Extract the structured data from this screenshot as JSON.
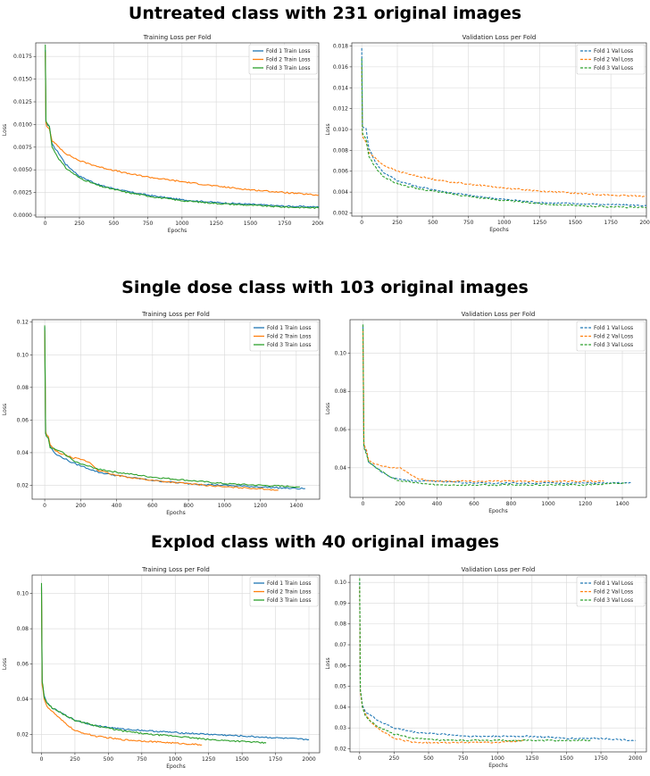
{
  "sections": [
    {
      "title": "Untreated class with 231 original images"
    },
    {
      "title": "Single dose class with 103 original images"
    },
    {
      "title": "Explod class with 40 original images"
    }
  ],
  "colors": {
    "fold1": "#1f77b4",
    "fold2": "#ff7f0e",
    "fold3": "#2ca02c"
  },
  "chart_data": [
    {
      "type": "line",
      "title": "Training Loss per Fold",
      "xlabel": "Epochs",
      "ylabel": "Loss",
      "xlim": [
        -70,
        2000
      ],
      "ylim": [
        -0.0002,
        0.019
      ],
      "xticks": [
        0,
        250,
        500,
        750,
        1000,
        1250,
        1500,
        1750,
        2000
      ],
      "yticks": [
        0.0,
        0.0025,
        0.005,
        0.0075,
        0.01,
        0.0125,
        0.015,
        0.0175
      ],
      "ytick_labels": [
        "0.0000",
        "0.0025",
        "0.0050",
        "0.0075",
        "0.0100",
        "0.0125",
        "0.0150",
        "0.0175"
      ],
      "legend": "top-right",
      "grid": true,
      "line_style": "solid",
      "series": [
        {
          "name": "Fold 1 Train Loss",
          "x": [
            0,
            5,
            10,
            30,
            50,
            100,
            150,
            250,
            400,
            600,
            800,
            1000,
            1250,
            1500,
            1750,
            2000
          ],
          "y": [
            0.0182,
            0.0102,
            0.01,
            0.0098,
            0.0078,
            0.0068,
            0.0056,
            0.0043,
            0.0033,
            0.0026,
            0.0021,
            0.0017,
            0.0014,
            0.0012,
            0.001,
            0.0009
          ]
        },
        {
          "name": "Fold 2 Train Loss",
          "x": [
            0,
            5,
            10,
            30,
            50,
            100,
            150,
            250,
            400,
            600,
            800,
            1000,
            1250,
            1500,
            1750,
            2000
          ],
          "y": [
            0.018,
            0.0102,
            0.0098,
            0.0095,
            0.0082,
            0.0075,
            0.0068,
            0.006,
            0.0053,
            0.0046,
            0.0041,
            0.0037,
            0.0032,
            0.0028,
            0.0025,
            0.0022
          ]
        },
        {
          "name": "Fold 3 Train Loss",
          "x": [
            0,
            5,
            10,
            30,
            50,
            100,
            150,
            250,
            400,
            600,
            800,
            1000,
            1250,
            1500,
            1750,
            2000
          ],
          "y": [
            0.0188,
            0.0104,
            0.0102,
            0.0098,
            0.0075,
            0.0062,
            0.0052,
            0.0041,
            0.0032,
            0.0025,
            0.002,
            0.0016,
            0.0013,
            0.0011,
            0.0009,
            0.0008
          ]
        }
      ]
    },
    {
      "type": "line",
      "title": "Validation Loss per Fold",
      "xlabel": "Epochs",
      "ylabel": "Loss",
      "xlim": [
        -70,
        2000
      ],
      "ylim": [
        0.0017,
        0.0183
      ],
      "xticks": [
        0,
        250,
        500,
        750,
        1000,
        1250,
        1500,
        1750,
        2000
      ],
      "yticks": [
        0.002,
        0.004,
        0.006,
        0.008,
        0.01,
        0.012,
        0.014,
        0.016,
        0.018
      ],
      "ytick_labels": [
        "0.002",
        "0.004",
        "0.006",
        "0.008",
        "0.010",
        "0.012",
        "0.014",
        "0.016",
        "0.018"
      ],
      "legend": "top-right",
      "grid": true,
      "line_style": "dashed",
      "series": [
        {
          "name": "Fold 1 Val Loss",
          "x": [
            0,
            5,
            10,
            30,
            50,
            100,
            150,
            250,
            400,
            600,
            800,
            1000,
            1250,
            1500,
            1750,
            2000
          ],
          "y": [
            0.0178,
            0.0103,
            0.0102,
            0.0101,
            0.0082,
            0.0068,
            0.0059,
            0.0051,
            0.0045,
            0.004,
            0.0036,
            0.0033,
            0.003,
            0.0029,
            0.0028,
            0.0027
          ]
        },
        {
          "name": "Fold 2 Val Loss",
          "x": [
            0,
            5,
            10,
            30,
            50,
            100,
            150,
            250,
            400,
            600,
            800,
            1000,
            1250,
            1500,
            1750,
            2000
          ],
          "y": [
            0.016,
            0.0095,
            0.0092,
            0.0088,
            0.0078,
            0.0072,
            0.0066,
            0.006,
            0.0055,
            0.005,
            0.0047,
            0.0044,
            0.0041,
            0.0039,
            0.0037,
            0.0036
          ]
        },
        {
          "name": "Fold 3 Val Loss",
          "x": [
            0,
            5,
            10,
            30,
            50,
            100,
            150,
            250,
            400,
            600,
            800,
            1000,
            1250,
            1500,
            1750,
            2000
          ],
          "y": [
            0.0168,
            0.0097,
            0.0095,
            0.0091,
            0.0074,
            0.0063,
            0.0055,
            0.0048,
            0.0043,
            0.0039,
            0.0035,
            0.0032,
            0.0029,
            0.0027,
            0.0026,
            0.0025
          ]
        }
      ]
    },
    {
      "type": "line",
      "title": "Training Loss per Fold",
      "xlabel": "Epochs",
      "ylabel": "Loss",
      "xlim": [
        -70,
        1530
      ],
      "ylim": [
        0.0115,
        0.1215
      ],
      "xticks": [
        0,
        200,
        400,
        600,
        800,
        1000,
        1200,
        1400
      ],
      "yticks": [
        0.02,
        0.04,
        0.06,
        0.08,
        0.1,
        0.12
      ],
      "ytick_labels": [
        "0.02",
        "0.04",
        "0.06",
        "0.08",
        "0.10",
        "0.12"
      ],
      "legend": "top-right",
      "grid": true,
      "line_style": "solid",
      "series": [
        {
          "name": "Fold 1 Train Loss",
          "x": [
            0,
            5,
            10,
            20,
            30,
            60,
            100,
            150,
            200,
            300,
            400,
            600,
            800,
            1000,
            1200,
            1400,
            1450
          ],
          "y": [
            0.117,
            0.052,
            0.05,
            0.049,
            0.044,
            0.039,
            0.037,
            0.034,
            0.032,
            0.028,
            0.026,
            0.023,
            0.021,
            0.02,
            0.019,
            0.018,
            0.018
          ]
        },
        {
          "name": "Fold 2 Train Loss",
          "x": [
            0,
            5,
            10,
            20,
            30,
            60,
            100,
            150,
            200,
            250,
            280,
            300,
            400,
            600,
            800,
            1000,
            1200,
            1300
          ],
          "y": [
            0.115,
            0.053,
            0.051,
            0.05,
            0.045,
            0.041,
            0.039,
            0.037,
            0.036,
            0.034,
            0.031,
            0.029,
            0.026,
            0.023,
            0.021,
            0.019,
            0.018,
            0.017
          ]
        },
        {
          "name": "Fold 3 Train Loss",
          "x": [
            0,
            5,
            10,
            20,
            30,
            60,
            100,
            150,
            200,
            300,
            400,
            600,
            800,
            1000,
            1200,
            1420
          ],
          "y": [
            0.118,
            0.052,
            0.05,
            0.049,
            0.043,
            0.042,
            0.04,
            0.036,
            0.033,
            0.03,
            0.028,
            0.025,
            0.023,
            0.021,
            0.02,
            0.019
          ]
        }
      ]
    },
    {
      "type": "line",
      "title": "Validation Loss per Fold",
      "xlabel": "Epochs",
      "ylabel": "Loss",
      "xlim": [
        -70,
        1530
      ],
      "ylim": [
        0.0245,
        0.1175
      ],
      "xticks": [
        0,
        200,
        400,
        600,
        800,
        1000,
        1200,
        1400
      ],
      "yticks": [
        0.04,
        0.06,
        0.08,
        0.1
      ],
      "ytick_labels": [
        "0.04",
        "0.06",
        "0.08",
        "0.10"
      ],
      "legend": "top-right",
      "grid": true,
      "line_style": "dashed",
      "series": [
        {
          "name": "Fold 1 Val Loss",
          "x": [
            0,
            5,
            10,
            20,
            30,
            60,
            100,
            150,
            200,
            300,
            400,
            600,
            800,
            1000,
            1200,
            1400,
            1450
          ],
          "y": [
            0.114,
            0.052,
            0.05,
            0.048,
            0.043,
            0.041,
            0.038,
            0.035,
            0.034,
            0.033,
            0.033,
            0.032,
            0.032,
            0.032,
            0.032,
            0.032,
            0.032
          ]
        },
        {
          "name": "Fold 2 Val Loss",
          "x": [
            0,
            5,
            10,
            20,
            30,
            60,
            100,
            150,
            200,
            250,
            300,
            400,
            600,
            800,
            1000,
            1200,
            1300
          ],
          "y": [
            0.112,
            0.053,
            0.051,
            0.049,
            0.044,
            0.042,
            0.041,
            0.04,
            0.04,
            0.037,
            0.034,
            0.033,
            0.033,
            0.033,
            0.033,
            0.033,
            0.033
          ]
        },
        {
          "name": "Fold 3 Val Loss",
          "x": [
            0,
            5,
            10,
            20,
            30,
            60,
            100,
            150,
            200,
            300,
            400,
            600,
            800,
            1000,
            1200,
            1420
          ],
          "y": [
            0.115,
            0.051,
            0.049,
            0.047,
            0.043,
            0.041,
            0.038,
            0.035,
            0.033,
            0.032,
            0.031,
            0.031,
            0.031,
            0.031,
            0.031,
            0.032
          ]
        }
      ]
    },
    {
      "type": "line",
      "title": "Training Loss per Fold",
      "xlabel": "Epochs",
      "ylabel": "Loss",
      "xlim": [
        -70,
        2080
      ],
      "ylim": [
        0.0095,
        0.1105
      ],
      "xticks": [
        0,
        250,
        500,
        750,
        1000,
        1250,
        1500,
        1750,
        2000
      ],
      "yticks": [
        0.02,
        0.04,
        0.06,
        0.08,
        0.1
      ],
      "ytick_labels": [
        "0.02",
        "0.04",
        "0.06",
        "0.08",
        "0.10"
      ],
      "legend": "top-right",
      "grid": true,
      "line_style": "solid",
      "series": [
        {
          "name": "Fold 1 Train Loss",
          "x": [
            0,
            5,
            10,
            20,
            40,
            80,
            150,
            250,
            400,
            600,
            800,
            1000,
            1250,
            1500,
            1750,
            2000
          ],
          "y": [
            0.104,
            0.049,
            0.047,
            0.042,
            0.038,
            0.035,
            0.032,
            0.028,
            0.025,
            0.023,
            0.022,
            0.021,
            0.02,
            0.019,
            0.018,
            0.017
          ]
        },
        {
          "name": "Fold 2 Train Loss",
          "x": [
            0,
            5,
            10,
            20,
            40,
            80,
            150,
            250,
            400,
            600,
            800,
            1000,
            1200
          ],
          "y": [
            0.103,
            0.048,
            0.046,
            0.04,
            0.036,
            0.033,
            0.028,
            0.022,
            0.019,
            0.017,
            0.016,
            0.015,
            0.014
          ]
        },
        {
          "name": "Fold 3 Train Loss",
          "x": [
            0,
            5,
            10,
            20,
            40,
            80,
            150,
            250,
            400,
            600,
            800,
            1000,
            1250,
            1500,
            1680
          ],
          "y": [
            0.106,
            0.05,
            0.048,
            0.041,
            0.038,
            0.035,
            0.032,
            0.028,
            0.025,
            0.022,
            0.02,
            0.019,
            0.017,
            0.016,
            0.015
          ]
        }
      ]
    },
    {
      "type": "line",
      "title": "Validation Loss per Fold",
      "xlabel": "Epochs",
      "ylabel": "Loss",
      "xlim": [
        -70,
        2080
      ],
      "ylim": [
        0.0185,
        0.1035
      ],
      "xticks": [
        0,
        250,
        500,
        750,
        1000,
        1250,
        1500,
        1750,
        2000
      ],
      "yticks": [
        0.02,
        0.03,
        0.04,
        0.05,
        0.06,
        0.07,
        0.08,
        0.09,
        0.1
      ],
      "ytick_labels": [
        "0.02",
        "0.03",
        "0.04",
        "0.05",
        "0.06",
        "0.07",
        "0.08",
        "0.09",
        "0.10"
      ],
      "legend": "top-right",
      "grid": true,
      "line_style": "dashed",
      "series": [
        {
          "name": "Fold 1 Val Loss",
          "x": [
            0,
            5,
            10,
            20,
            40,
            80,
            150,
            250,
            400,
            600,
            800,
            1000,
            1250,
            1500,
            1750,
            2000
          ],
          "y": [
            0.1,
            0.048,
            0.046,
            0.041,
            0.038,
            0.036,
            0.033,
            0.03,
            0.028,
            0.027,
            0.026,
            0.026,
            0.026,
            0.025,
            0.025,
            0.024
          ]
        },
        {
          "name": "Fold 2 Val Loss",
          "x": [
            0,
            5,
            10,
            20,
            40,
            80,
            150,
            250,
            400,
            600,
            800,
            1000,
            1200
          ],
          "y": [
            0.098,
            0.047,
            0.045,
            0.04,
            0.037,
            0.033,
            0.029,
            0.025,
            0.023,
            0.023,
            0.023,
            0.023,
            0.024
          ]
        },
        {
          "name": "Fold 3 Val Loss",
          "x": [
            0,
            5,
            10,
            20,
            40,
            80,
            150,
            250,
            400,
            600,
            800,
            1000,
            1250,
            1500,
            1680
          ],
          "y": [
            0.102,
            0.048,
            0.046,
            0.04,
            0.036,
            0.033,
            0.03,
            0.027,
            0.025,
            0.024,
            0.024,
            0.024,
            0.024,
            0.024,
            0.024
          ]
        }
      ]
    }
  ]
}
